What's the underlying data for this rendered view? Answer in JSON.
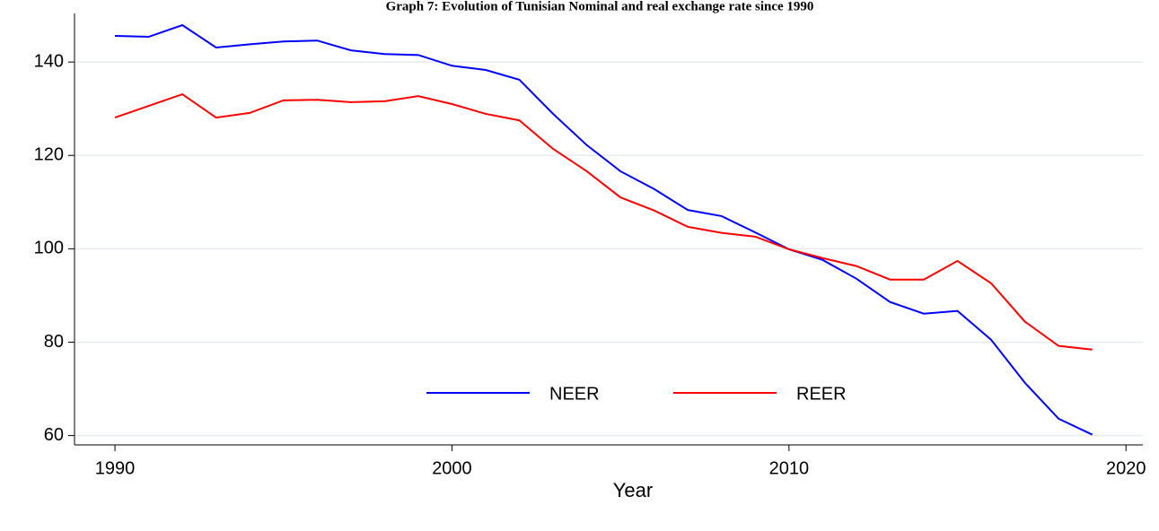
{
  "chart_data": {
    "type": "line",
    "title": "Graph 7: Evolution of Tunisian Nominal and real exchange rate since 1990",
    "x_label": "Year",
    "x": [
      1990,
      1991,
      1992,
      1993,
      1994,
      1995,
      1996,
      1997,
      1998,
      1999,
      2000,
      2001,
      2002,
      2003,
      2004,
      2005,
      2006,
      2007,
      2008,
      2009,
      2010,
      2011,
      2012,
      2013,
      2014,
      2015,
      2016,
      2017,
      2018,
      2019
    ],
    "series": [
      {
        "name": "NEER",
        "color": "#0000ff",
        "values": [
          145.6,
          145.4,
          147.9,
          143.1,
          143.8,
          144.4,
          144.6,
          142.5,
          141.7,
          141.5,
          139.2,
          138.3,
          136.2,
          128.9,
          122.2,
          116.6,
          112.8,
          108.3,
          107.0,
          103.5,
          99.9,
          97.6,
          93.6,
          88.6,
          86.1,
          86.7,
          80.5,
          71.3,
          63.6,
          60.2
        ]
      },
      {
        "name": "REER",
        "color": "#ff0000",
        "values": [
          128.1,
          130.6,
          133.1,
          128.1,
          129.1,
          131.8,
          131.9,
          131.4,
          131.6,
          132.7,
          131.0,
          128.9,
          127.5,
          121.4,
          116.6,
          111.0,
          108.2,
          104.7,
          103.4,
          102.6,
          99.9,
          98.0,
          96.3,
          93.4,
          93.4,
          97.4,
          92.6,
          84.4,
          79.2,
          78.4
        ]
      }
    ],
    "xlim": [
      1988.8,
      2020.5
    ],
    "xticks": [
      1990,
      2000,
      2010,
      2020
    ],
    "ylim": [
      58,
      150.4
    ],
    "yticks": [
      60,
      80,
      100,
      120,
      140
    ],
    "grid": true,
    "legend": "bottom"
  }
}
